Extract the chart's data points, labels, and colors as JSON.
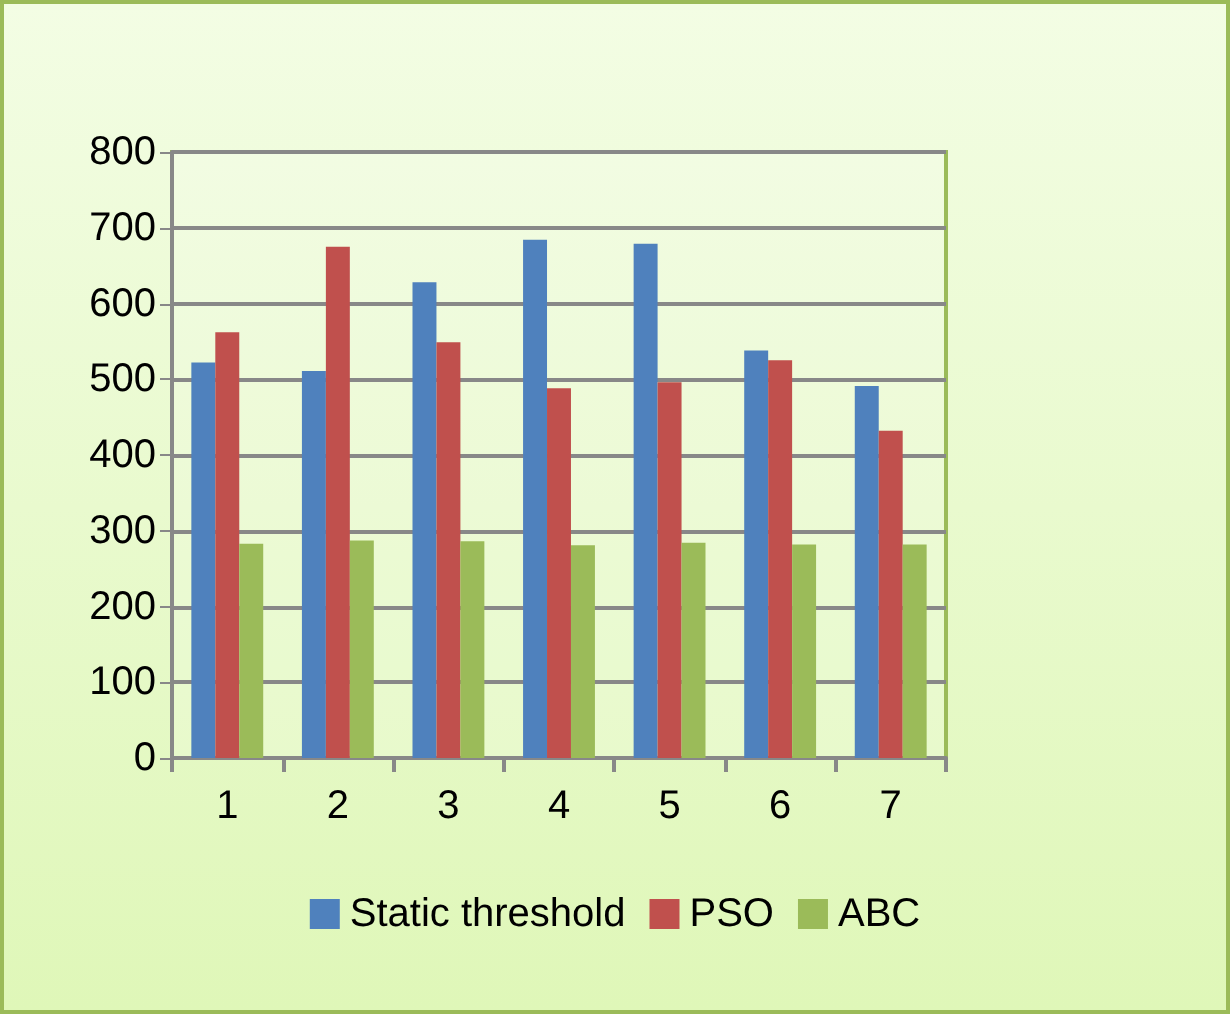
{
  "chart_data": {
    "type": "bar",
    "categories": [
      "1",
      "2",
      "3",
      "4",
      "5",
      "6",
      "7"
    ],
    "series": [
      {
        "name": "Static threshold",
        "color": "#4f81bd",
        "values": [
          522,
          511,
          628,
          684,
          679,
          538,
          491
        ]
      },
      {
        "name": "PSO",
        "color": "#c0504d",
        "values": [
          562,
          675,
          549,
          488,
          496,
          525,
          432
        ]
      },
      {
        "name": "ABC",
        "color": "#9bbb59",
        "values": [
          283,
          287,
          286,
          281,
          284,
          282,
          282
        ]
      }
    ],
    "ylim": [
      0,
      800
    ],
    "yticks": [
      0,
      100,
      200,
      300,
      400,
      500,
      600,
      700,
      800
    ],
    "grid": "y",
    "legend": "bottom"
  }
}
